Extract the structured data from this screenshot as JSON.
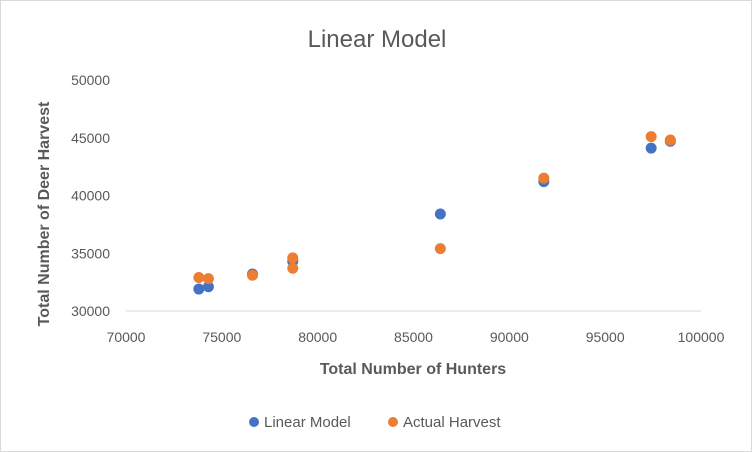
{
  "chart_data": {
    "type": "scatter",
    "title": "Linear Model",
    "xlabel": "Total Number of Hunters",
    "ylabel": "Total Number of Deer Harvest",
    "xlim": [
      70000,
      100000
    ],
    "ylim": [
      30000,
      50000
    ],
    "x_ticks": [
      "70000",
      "75000",
      "80000",
      "85000",
      "90000",
      "95000",
      "100000"
    ],
    "y_ticks": [
      "30000",
      "35000",
      "40000",
      "45000",
      "50000"
    ],
    "grid": false,
    "legend_position": "bottom",
    "series": [
      {
        "name": "Linear Model",
        "color": "#4472C4",
        "points": [
          {
            "x": 73800,
            "y": 31900
          },
          {
            "x": 74300,
            "y": 32100
          },
          {
            "x": 76600,
            "y": 33200
          },
          {
            "x": 78700,
            "y": 34300
          },
          {
            "x": 86400,
            "y": 38400
          },
          {
            "x": 91800,
            "y": 41200
          },
          {
            "x": 97400,
            "y": 44100
          },
          {
            "x": 98400,
            "y": 44700
          }
        ]
      },
      {
        "name": "Actual Harvest",
        "color": "#ED7D31",
        "points": [
          {
            "x": 73800,
            "y": 32900
          },
          {
            "x": 74300,
            "y": 32800
          },
          {
            "x": 76600,
            "y": 33100
          },
          {
            "x": 78700,
            "y": 34600
          },
          {
            "x": 78700,
            "y": 33700
          },
          {
            "x": 86400,
            "y": 35400
          },
          {
            "x": 91800,
            "y": 41500
          },
          {
            "x": 97400,
            "y": 45100
          },
          {
            "x": 98400,
            "y": 44800
          }
        ]
      }
    ]
  }
}
